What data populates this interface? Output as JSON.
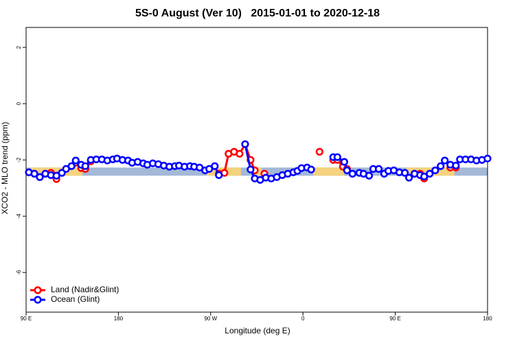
{
  "chart_data": {
    "type": "line",
    "title": "5S-0 August (Ver 10)   2015-01-01 to 2020-12-18",
    "x_label": "Longitude (deg E)",
    "y_label": "XCO2 - MLO trend (ppm)",
    "xlim": [
      90,
      540
    ],
    "xticks": [
      {
        "value": 90,
        "label": "90 E"
      },
      180,
      {
        "value": 270,
        "label": "90 W"
      },
      {
        "value": 360,
        "label": "0"
      },
      {
        "value": 450,
        "label": "90 E"
      },
      {
        "value": 540,
        "label": "180"
      }
    ],
    "ylim": [
      -7.41,
      2.71
    ],
    "yticks": [
      2,
      0,
      -2,
      -4,
      -6
    ],
    "legend": "bottom-left",
    "band": {
      "range": [
        -2.56,
        -2.27
      ],
      "color": "#a4b8d8",
      "land_color": "#f5d27e",
      "land_ranges": [
        [
          94.7,
          145
        ],
        [
          266,
          299.5
        ],
        [
          313,
          319.7
        ],
        [
          370,
          400.3
        ],
        [
          460.7,
          507.7
        ]
      ]
    },
    "series": [
      {
        "name": "Land (Nadir&Glint)",
        "color": "#ff0000",
        "x": [
          92.7,
          98.1,
          103.4,
          108.8,
          114.2,
          119.6,
          124.9,
          null,
          138.4,
          143.7,
          147.8,
          153.1,
          null,
          278,
          283.4,
          287.4,
          292.8,
          298.2,
          303.6,
          308.9,
          313,
          null,
          322.4,
          null,
          376.2,
          null,
          389.5,
          393.6,
          399,
          403,
          null,
          468.8,
          474.2,
          478.2,
          null,
          503.7,
          509.1
        ],
        "values": [
          -2.44,
          -2.49,
          -2.61,
          -2.49,
          -2.46,
          -2.68,
          -2.46,
          null,
          -2.1,
          -2.29,
          -2.32,
          -2.05,
          null,
          -2.49,
          -2.46,
          -1.78,
          -1.71,
          -1.78,
          -1.44,
          -2.0,
          -2.37,
          null,
          -2.49,
          null,
          -1.71,
          null,
          -2.0,
          -2.0,
          -2.24,
          -2.32,
          null,
          -2.49,
          -2.49,
          -2.66,
          null,
          -2.27,
          -2.27
        ]
      },
      {
        "name": "Ocean (Glint)",
        "color": "#0000ff",
        "x": [
          92.7,
          98.1,
          103.4,
          108.8,
          114.2,
          119.6,
          124.9,
          129,
          134.3,
          138.4,
          143.7,
          147.8,
          153.1,
          158.5,
          163.9,
          169.2,
          174.6,
          178.7,
          184,
          189.4,
          193.4,
          198.8,
          204.2,
          208.2,
          213.6,
          218.9,
          224.3,
          229.7,
          235.1,
          239.1,
          244.5,
          249.8,
          253.9,
          259.2,
          264.6,
          268.6,
          274,
          278,
          null,
          303.6,
          308.9,
          313,
          318.3,
          323.7,
          329.1,
          334.5,
          339.8,
          345.2,
          350.6,
          354.6,
          358.6,
          364,
          368,
          null,
          389.5,
          393.6,
          400.3,
          403,
          408.3,
          415,
          419.1,
          424.5,
          428.5,
          433.9,
          439.2,
          443.3,
          448.6,
          454,
          459.4,
          463.4,
          468.8,
          474.2,
          478.2,
          483.6,
          489,
          494.3,
          498.3,
          503.7,
          509.1,
          513.1,
          518.5,
          523.9,
          529.2,
          534.6,
          540
        ],
        "values": [
          -2.44,
          -2.49,
          -2.61,
          -2.49,
          -2.54,
          -2.56,
          -2.46,
          -2.32,
          -2.22,
          -2.02,
          -2.17,
          -2.22,
          -2.0,
          -1.98,
          -1.98,
          -2.02,
          -1.98,
          -1.95,
          -2.0,
          -2.02,
          -2.1,
          -2.07,
          -2.12,
          -2.17,
          -2.12,
          -2.15,
          -2.2,
          -2.24,
          -2.22,
          -2.2,
          -2.24,
          -2.22,
          -2.24,
          -2.27,
          -2.37,
          -2.32,
          -2.22,
          -2.54,
          null,
          -1.44,
          -2.34,
          -2.66,
          -2.71,
          -2.63,
          -2.66,
          -2.61,
          -2.54,
          -2.49,
          -2.44,
          -2.39,
          -2.29,
          -2.27,
          -2.34,
          null,
          -1.9,
          -1.9,
          -2.07,
          -2.37,
          -2.49,
          -2.46,
          -2.49,
          -2.56,
          -2.32,
          -2.32,
          -2.49,
          -2.39,
          -2.37,
          -2.44,
          -2.46,
          -2.63,
          -2.49,
          -2.54,
          -2.59,
          -2.49,
          -2.37,
          -2.22,
          -2.02,
          -2.17,
          -2.2,
          -1.98,
          -1.98,
          -1.98,
          -2.02,
          -2.0,
          -1.95
        ]
      }
    ]
  }
}
